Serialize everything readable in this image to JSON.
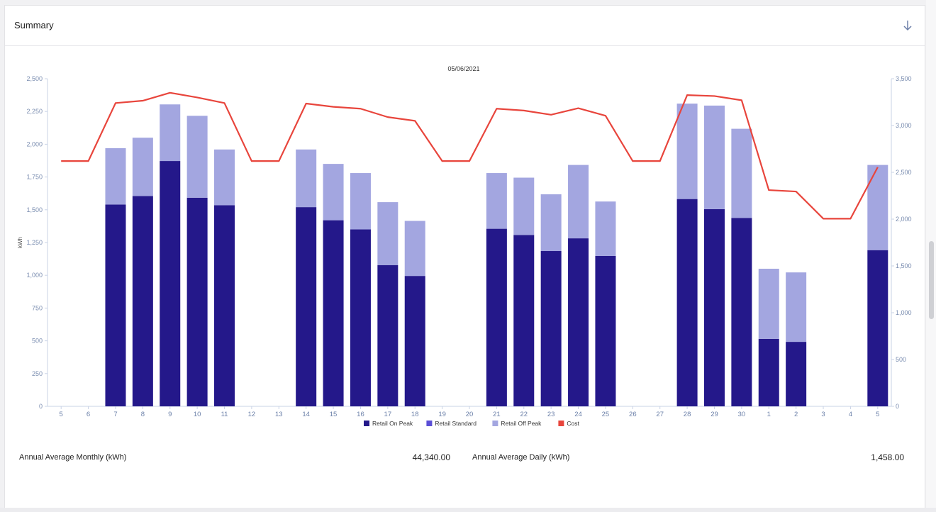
{
  "card": {
    "title": "Summary",
    "download_icon": "arrow-down-icon"
  },
  "stats": {
    "monthly_label": "Annual Average Monthly (kWh)",
    "monthly_value": "44,340.00",
    "daily_label": "Annual Average Daily (kWh)",
    "daily_value": "1,458.00"
  },
  "chart_data": {
    "type": "bar",
    "title": "05/06/2021",
    "xlabel": "",
    "ylabel": "kWh",
    "ylabel_right": "",
    "ylim": [
      0,
      2500
    ],
    "ylim_right": [
      0,
      3500
    ],
    "yticks": [
      0,
      250,
      500,
      750,
      1000,
      1250,
      1500,
      1750,
      2000,
      2250,
      2500
    ],
    "yticks_right": [
      0,
      500,
      1000,
      1500,
      2000,
      2500,
      3000,
      3500
    ],
    "categories": [
      "5",
      "6",
      "7",
      "8",
      "9",
      "10",
      "11",
      "12",
      "13",
      "14",
      "15",
      "16",
      "17",
      "18",
      "19",
      "20",
      "21",
      "22",
      "23",
      "24",
      "25",
      "26",
      "27",
      "28",
      "29",
      "30",
      "1",
      "2",
      "3",
      "4",
      "5"
    ],
    "stacked": true,
    "grid": false,
    "legend_position": "bottom",
    "series": [
      {
        "name": "Retail On Peak",
        "color": "#24188a",
        "type": "bar",
        "values": [
          0,
          0,
          1540,
          1605,
          1872,
          1592,
          1535,
          0,
          0,
          1520,
          1420,
          1350,
          1078,
          995,
          0,
          0,
          1355,
          1308,
          1185,
          1282,
          1148,
          0,
          0,
          1582,
          1505,
          1438,
          515,
          492,
          0,
          0,
          1192
        ]
      },
      {
        "name": "Retail Standard",
        "color": "#5b4fd6",
        "type": "bar",
        "values": [
          0,
          0,
          0,
          0,
          0,
          0,
          0,
          0,
          0,
          0,
          0,
          0,
          0,
          0,
          0,
          0,
          0,
          0,
          0,
          0,
          0,
          0,
          0,
          0,
          0,
          0,
          0,
          0,
          0,
          0,
          0
        ]
      },
      {
        "name": "Retail Off Peak",
        "color": "#a3a6e0",
        "type": "bar",
        "values": [
          0,
          0,
          430,
          445,
          432,
          625,
          425,
          0,
          0,
          440,
          430,
          430,
          480,
          420,
          0,
          0,
          425,
          437,
          433,
          560,
          415,
          0,
          0,
          728,
          790,
          680,
          535,
          530,
          0,
          0,
          650
        ]
      },
      {
        "name": "Cost",
        "color": "#e8453c",
        "type": "line",
        "axis": "right",
        "values": [
          2620,
          2620,
          3240,
          3265,
          3350,
          3300,
          3240,
          2620,
          2620,
          3235,
          3200,
          3180,
          3090,
          3050,
          2620,
          2620,
          3180,
          3160,
          3115,
          3185,
          3105,
          2620,
          2620,
          3325,
          3315,
          3270,
          2310,
          2295,
          2005,
          2005,
          2555
        ]
      }
    ]
  }
}
